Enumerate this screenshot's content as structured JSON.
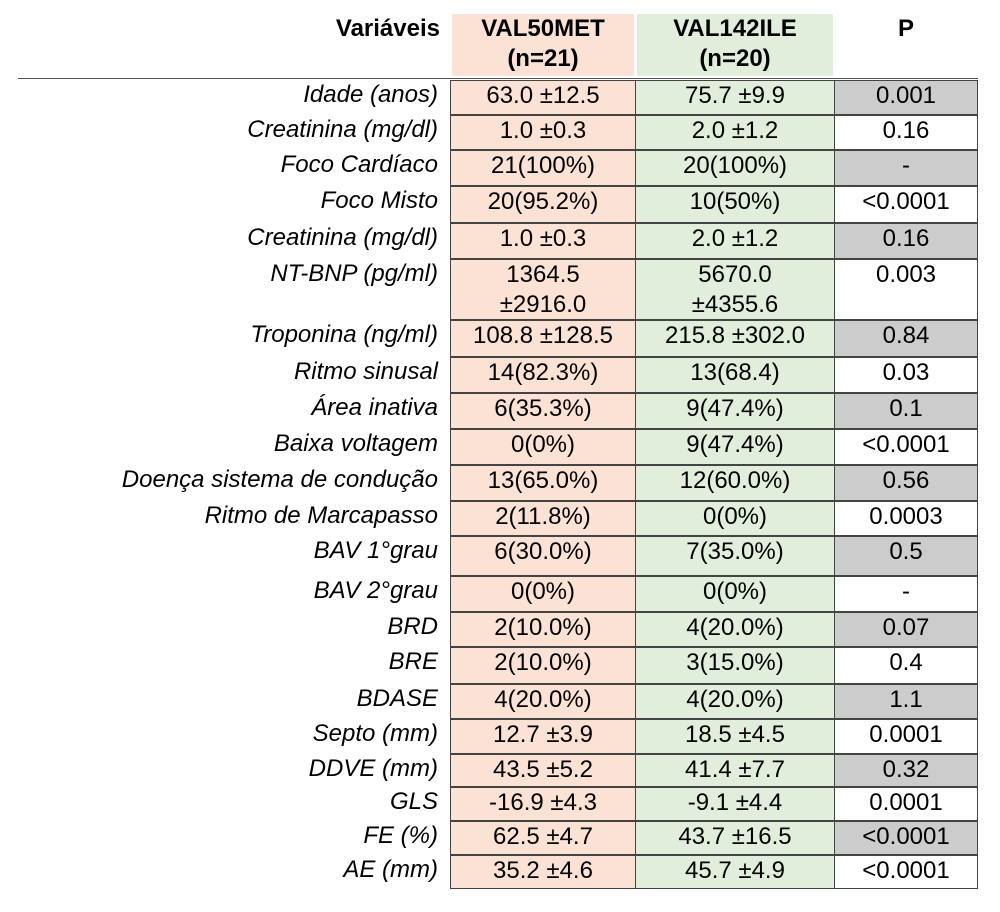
{
  "headers": {
    "variables": "Variáveis",
    "group1_line1": "VAL50MET",
    "group1_line2": "(n=21)",
    "group2_line1": "VAL142ILE",
    "group2_line2": "(n=20)",
    "p": "P"
  },
  "rows": [
    {
      "variable": "Idade (anos)",
      "g1": "63.0 ±12.5",
      "g2": "75.7 ±9.9",
      "p": "0.001",
      "p_shaded": true
    },
    {
      "variable": "Creatinina (mg/dl)",
      "g1": "1.0 ±0.3",
      "g2": "2.0 ±1.2",
      "p": "0.16",
      "p_shaded": false
    },
    {
      "variable": "Foco Cardíaco",
      "g1": "21(100%)",
      "g2": "20(100%)",
      "p": "-",
      "p_shaded": true
    },
    {
      "variable": "Foco Misto",
      "g1": "20(95.2%)",
      "g2": "10(50%)",
      "p": "<0.0001",
      "p_shaded": false
    },
    {
      "variable": "Creatinina (mg/dl)",
      "g1": "1.0 ±0.3",
      "g2": "2.0 ±1.2",
      "p": "0.16",
      "p_shaded": true
    },
    {
      "variable": "NT-BNP (pg/ml)",
      "g1": "1364.5",
      "g1b": "±2916.0",
      "g2": "5670.0",
      "g2b": "±4355.6",
      "p": "0.003",
      "p_shaded": false
    },
    {
      "variable": "Troponina (ng/ml)",
      "g1": "108.8 ±128.5",
      "g2": "215.8 ±302.0",
      "p": "0.84",
      "p_shaded": true
    },
    {
      "variable": "Ritmo sinusal",
      "g1": "14(82.3%)",
      "g2": "13(68.4)",
      "p": "0.03",
      "p_shaded": false
    },
    {
      "variable": "Área inativa",
      "g1": "6(35.3%)",
      "g2": "9(47.4%)",
      "p": "0.1",
      "p_shaded": true
    },
    {
      "variable": "Baixa voltagem",
      "g1": "0(0%)",
      "g2": "9(47.4%)",
      "p": "<0.0001",
      "p_shaded": false
    },
    {
      "variable": "Doença sistema de condução",
      "g1": "13(65.0%)",
      "g2": "12(60.0%)",
      "p": "0.56",
      "p_shaded": true
    },
    {
      "variable": "Ritmo de Marcapasso",
      "g1": "2(11.8%)",
      "g2": "0(0%)",
      "p": "0.0003",
      "p_shaded": false
    },
    {
      "variable": "BAV 1°grau",
      "g1": "6(30.0%)",
      "g2": "7(35.0%)",
      "p": "0.5",
      "p_shaded": true
    },
    {
      "variable": "BAV 2°grau",
      "g1": "0(0%)",
      "g2": "0(0%)",
      "p": "-",
      "p_shaded": false
    },
    {
      "variable": "BRD",
      "g1": "2(10.0%)",
      "g2": "4(20.0%)",
      "p": "0.07",
      "p_shaded": true
    },
    {
      "variable": "BRE",
      "g1": "2(10.0%)",
      "g2": "3(15.0%)",
      "p": "0.4",
      "p_shaded": false
    },
    {
      "variable": "BDASE",
      "g1": "4(20.0%)",
      "g2": "4(20.0%)",
      "p": "1.1",
      "p_shaded": true
    },
    {
      "variable": "Septo (mm)",
      "g1": "12.7 ±3.9",
      "g2": "18.5 ±4.5",
      "p": "0.0001",
      "p_shaded": false
    },
    {
      "variable": "DDVE (mm)",
      "g1": "43.5 ±5.2",
      "g2": "41.4 ±7.7",
      "p": "0.32",
      "p_shaded": true
    },
    {
      "variable": "GLS",
      "g1": "-16.9 ±4.3",
      "g2": "-9.1 ±4.4",
      "p": "0.0001",
      "p_shaded": false
    },
    {
      "variable": "FE (%)",
      "g1": "62.5 ±4.7",
      "g2": "43.7 ±16.5",
      "p": "<0.0001",
      "p_shaded": true
    },
    {
      "variable": "AE (mm)",
      "g1": "35.2 ±4.6",
      "g2": "45.7 ±4.9",
      "p": "<0.0001",
      "p_shaded": false
    }
  ],
  "colors": {
    "group1_fill": "#fbe2d5",
    "group2_fill": "#e1eedb",
    "p_shaded_fill": "#cccccc"
  }
}
